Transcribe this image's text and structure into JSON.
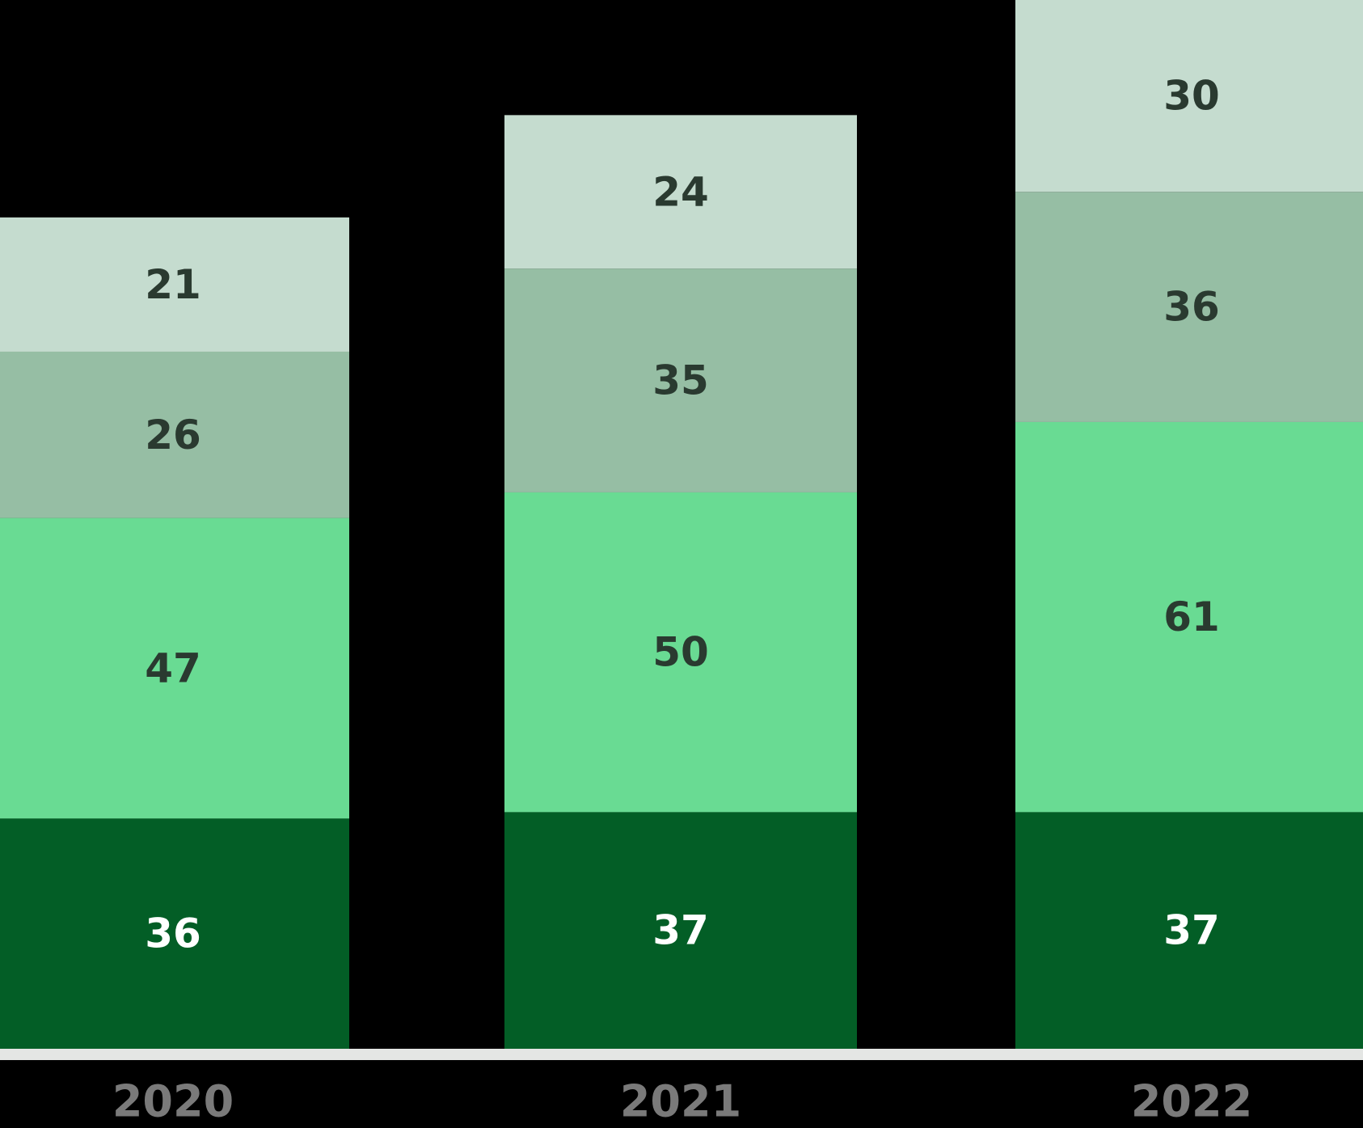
{
  "chart_data": {
    "type": "bar",
    "stacked": true,
    "categories": [
      "2020",
      "2021",
      "2022"
    ],
    "series": [
      {
        "values": [
          36,
          37,
          37
        ],
        "color": "#035e26",
        "label_color": "#ffffff"
      },
      {
        "values": [
          47,
          50,
          61
        ],
        "color": "#69db93",
        "label_color": "#2a3a30"
      },
      {
        "values": [
          26,
          35,
          36
        ],
        "color": "#96bea4",
        "label_color": "#2a3a30"
      },
      {
        "values": [
          21,
          24,
          30
        ],
        "color": "#c5dccf",
        "label_color": "#2a3a30"
      }
    ],
    "title": "",
    "xlabel": "",
    "ylabel": "",
    "ylim": [
      0,
      164
    ],
    "grid": false,
    "legend": "none",
    "baseline_color": "#e4e6e4",
    "category_label_color": "#7a7a7a",
    "background": "#000000"
  }
}
